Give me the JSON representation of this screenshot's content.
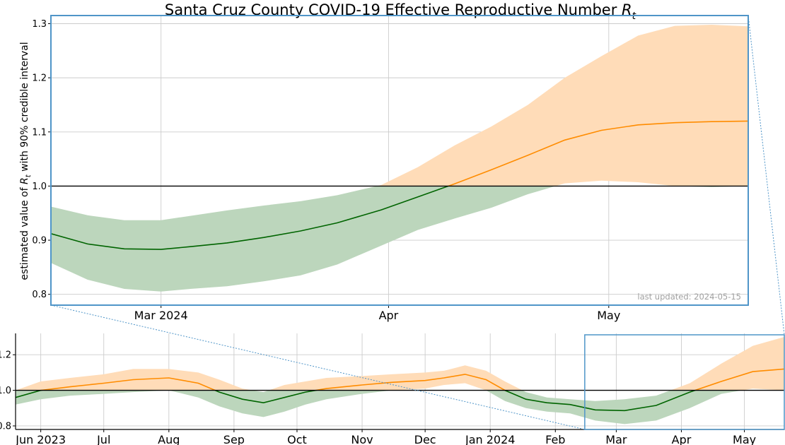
{
  "chart_data": [
    {
      "type": "area",
      "panel": "main",
      "title": "Santa Cruz County COVID-19 Effective Reproductive Number",
      "title_symbol": "R",
      "title_subscript": "t",
      "ylabel_prefix": "estimated value of",
      "ylabel_symbol": "R",
      "ylabel_subscript": "t",
      "ylabel_suffix": "with 90% credible interval",
      "ylim": [
        0.78,
        1.315
      ],
      "xlim": [
        "2024-02-15",
        "2024-05-20"
      ],
      "y_ticks": [
        "0.8",
        "0.9",
        "1.0",
        "1.1",
        "1.2",
        "1.3"
      ],
      "x_ticks": [
        {
          "date": "2024-03-01",
          "label": "Mar 2024"
        },
        {
          "date": "2024-04-01",
          "label": "Apr"
        },
        {
          "date": "2024-05-01",
          "label": "May"
        }
      ],
      "reference_line": 1.0,
      "grid": true,
      "annotation": "last updated: 2024-05-15",
      "colors": {
        "below": "#006400",
        "below_band": "#bcd6bc",
        "above": "#ff8c00",
        "above_band": "#ffdcb8",
        "box": "#4f95c8",
        "reference": "#000000"
      },
      "series": {
        "dates": [
          "2024-02-15",
          "2024-02-20",
          "2024-02-25",
          "2024-03-01",
          "2024-03-05",
          "2024-03-10",
          "2024-03-15",
          "2024-03-20",
          "2024-03-25",
          "2024-03-31",
          "2024-04-05",
          "2024-04-10",
          "2024-04-15",
          "2024-04-20",
          "2024-04-25",
          "2024-04-30",
          "2024-05-05",
          "2024-05-10",
          "2024-05-15",
          "2024-05-20"
        ],
        "rt": [
          0.912,
          0.893,
          0.884,
          0.883,
          0.888,
          0.895,
          0.905,
          0.917,
          0.932,
          0.956,
          0.98,
          1.004,
          1.03,
          1.057,
          1.085,
          1.103,
          1.113,
          1.117,
          1.119,
          1.12
        ],
        "lower": [
          0.858,
          0.827,
          0.81,
          0.805,
          0.81,
          0.815,
          0.824,
          0.835,
          0.855,
          0.89,
          0.919,
          0.94,
          0.96,
          0.985,
          1.005,
          1.01,
          1.007,
          1.0,
          0.998,
          1.0
        ],
        "upper": [
          0.962,
          0.946,
          0.937,
          0.937,
          0.945,
          0.955,
          0.964,
          0.972,
          0.983,
          1.002,
          1.035,
          1.075,
          1.11,
          1.15,
          1.2,
          1.24,
          1.278,
          1.296,
          1.298,
          1.295
        ]
      }
    },
    {
      "type": "area",
      "panel": "overview",
      "ylim": [
        0.78,
        1.32
      ],
      "xlim": [
        "2023-05-20",
        "2024-05-20"
      ],
      "y_ticks": [
        "0.8",
        "1.0",
        "1.2"
      ],
      "x_ticks": [
        {
          "date": "2023-06-01",
          "label": "Jun 2023"
        },
        {
          "date": "2023-07-01",
          "label": "Jul"
        },
        {
          "date": "2023-08-01",
          "label": "Aug"
        },
        {
          "date": "2023-09-01",
          "label": "Sep"
        },
        {
          "date": "2023-10-01",
          "label": "Oct"
        },
        {
          "date": "2023-11-01",
          "label": "Nov"
        },
        {
          "date": "2023-12-01",
          "label": "Dec"
        },
        {
          "date": "2024-01-01",
          "label": "Jan 2024"
        },
        {
          "date": "2024-02-01",
          "label": "Feb"
        },
        {
          "date": "2024-03-01",
          "label": "Mar"
        },
        {
          "date": "2024-04-01",
          "label": "Apr"
        },
        {
          "date": "2024-05-01",
          "label": "May"
        }
      ],
      "reference_line": 1.0,
      "grid": true,
      "zoom_window": {
        "x": [
          "2024-02-15",
          "2024-05-20"
        ],
        "y": [
          0.78,
          1.315
        ]
      },
      "series": {
        "dates": [
          "2023-05-20",
          "2023-06-01",
          "2023-06-15",
          "2023-07-01",
          "2023-07-15",
          "2023-08-01",
          "2023-08-15",
          "2023-08-25",
          "2023-09-05",
          "2023-09-15",
          "2023-09-25",
          "2023-10-05",
          "2023-10-15",
          "2023-11-01",
          "2023-11-15",
          "2023-12-01",
          "2023-12-10",
          "2023-12-20",
          "2023-12-30",
          "2024-01-08",
          "2024-01-18",
          "2024-01-28",
          "2024-02-08",
          "2024-02-20",
          "2024-03-05",
          "2024-03-20",
          "2024-04-05",
          "2024-04-20",
          "2024-05-05",
          "2024-05-20"
        ],
        "rt": [
          0.96,
          1.0,
          1.02,
          1.04,
          1.06,
          1.07,
          1.04,
          0.99,
          0.95,
          0.93,
          0.96,
          0.99,
          1.01,
          1.03,
          1.045,
          1.055,
          1.07,
          1.09,
          1.06,
          1.0,
          0.95,
          0.93,
          0.92,
          0.89,
          0.886,
          0.915,
          0.99,
          1.05,
          1.105,
          1.12
        ],
        "lower": [
          0.92,
          0.95,
          0.97,
          0.98,
          0.99,
          1.0,
          0.96,
          0.91,
          0.87,
          0.85,
          0.88,
          0.92,
          0.95,
          0.98,
          1.0,
          1.01,
          1.03,
          1.04,
          1.0,
          0.94,
          0.9,
          0.88,
          0.87,
          0.83,
          0.81,
          0.83,
          0.9,
          0.98,
          1.01,
          1.0
        ],
        "upper": [
          1.0,
          1.05,
          1.07,
          1.09,
          1.12,
          1.12,
          1.1,
          1.06,
          1.01,
          0.99,
          1.03,
          1.05,
          1.07,
          1.08,
          1.09,
          1.1,
          1.11,
          1.14,
          1.11,
          1.05,
          0.99,
          0.96,
          0.95,
          0.94,
          0.95,
          0.97,
          1.04,
          1.15,
          1.25,
          1.3
        ]
      }
    }
  ]
}
